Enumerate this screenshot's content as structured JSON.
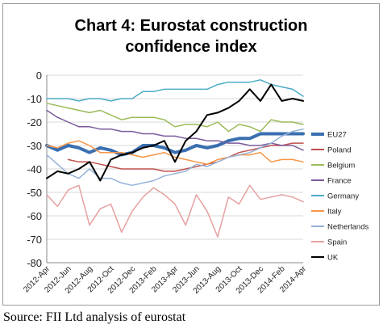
{
  "source_note": "Source: FII Ltd analysis of eurostat",
  "chart_data": {
    "type": "line",
    "title_lines": [
      "Chart 4: Eurostat construction",
      "confidence index"
    ],
    "ylim": [
      -80,
      0
    ],
    "yticks": [
      0,
      -10,
      -20,
      -30,
      -40,
      -50,
      -60,
      -70,
      -80
    ],
    "x_tick_labels": [
      "2012-Apr",
      "2012-Jun",
      "2012-Aug",
      "2012-Oct",
      "2012-Dec",
      "2013-Feb",
      "2013-Apr",
      "2013-Jun",
      "2013-Aug",
      "2013-Oct",
      "2013-Dec",
      "2014-Feb",
      "2014-Apr"
    ],
    "x": [
      "2012-Apr",
      "2012-May",
      "2012-Jun",
      "2012-Jul",
      "2012-Aug",
      "2012-Sep",
      "2012-Oct",
      "2012-Nov",
      "2012-Dec",
      "2013-Jan",
      "2013-Feb",
      "2013-Mar",
      "2013-Apr",
      "2013-May",
      "2013-Jun",
      "2013-Jul",
      "2013-Aug",
      "2013-Sep",
      "2013-Oct",
      "2013-Nov",
      "2013-Dec",
      "2014-Jan",
      "2014-Feb",
      "2014-Mar",
      "2014-Apr"
    ],
    "legend_position": "right",
    "series": [
      {
        "name": "EU27",
        "color": "#3a6fb0",
        "width": 4,
        "values": [
          -30,
          -32,
          -30,
          -31,
          -33,
          -31,
          -32,
          -34,
          -33,
          -30,
          -30,
          -31,
          -33,
          -32,
          -30,
          -31,
          -30,
          -28,
          -27,
          -27,
          -25,
          -25,
          -25,
          -25,
          -25
        ]
      },
      {
        "name": "Poland",
        "color": "#c0504d",
        "width": 1.5,
        "values": [
          null,
          null,
          -36,
          -37,
          -37,
          -38,
          -39,
          -40,
          -40,
          -40,
          -40,
          -41,
          -41,
          -40,
          -39,
          -38,
          -37,
          -35,
          -33,
          -32,
          -31,
          -30,
          -30,
          -29,
          -29
        ]
      },
      {
        "name": "Belgium",
        "color": "#9bbb59",
        "width": 1.5,
        "values": [
          -12,
          -13,
          -14,
          -15,
          -16,
          -15,
          -17,
          -19,
          -18,
          -18,
          -18,
          -19,
          -22,
          -21,
          -21,
          -22,
          -20,
          -24,
          -21,
          -22,
          -24,
          -19,
          -20,
          -20,
          -21
        ]
      },
      {
        "name": "France",
        "color": "#7b5a9c",
        "width": 1.5,
        "values": [
          -15,
          -18,
          -20,
          -22,
          -22,
          -23,
          -23,
          -24,
          -24,
          -25,
          -25,
          -26,
          -26,
          -27,
          -27,
          -28,
          -28,
          -29,
          -29,
          -30,
          -30,
          -29,
          -30,
          -30,
          -32
        ]
      },
      {
        "name": "Germany",
        "color": "#4bacc6",
        "width": 1.5,
        "values": [
          -10,
          -10,
          -10,
          -11,
          -10,
          -10,
          -11,
          -10,
          -10,
          -7,
          -7,
          -6,
          -6,
          -6,
          -6,
          -6,
          -4,
          -3,
          -3,
          -3,
          -2,
          -4,
          -5,
          -6,
          -9
        ]
      },
      {
        "name": "Italy",
        "color": "#f79646",
        "width": 1.5,
        "values": [
          -30,
          -31,
          -29,
          -28,
          -30,
          -33,
          -33,
          -33,
          -34,
          -35,
          -34,
          -33,
          -35,
          -36,
          -37,
          -38,
          -36,
          -35,
          -34,
          -34,
          -33,
          -37,
          -36,
          -36,
          -37
        ]
      },
      {
        "name": "Netherlands",
        "color": "#95b3d7",
        "width": 1.5,
        "values": [
          -34,
          -38,
          -42,
          -44,
          -40,
          -44,
          -44,
          -46,
          -47,
          -46,
          -45,
          -43,
          -42,
          -41,
          -38,
          -39,
          -37,
          -35,
          -34,
          -33,
          -31,
          -29,
          -26,
          -24,
          -23
        ]
      },
      {
        "name": "Spain",
        "color": "#e6a0a0",
        "width": 1.5,
        "values": [
          -51,
          -56,
          -49,
          -47,
          -64,
          -57,
          -55,
          -67,
          -58,
          -52,
          -48,
          -51,
          -55,
          -64,
          -51,
          -58,
          -69,
          -52,
          -55,
          -47,
          -53,
          -52,
          -51,
          -52,
          -54
        ]
      },
      {
        "name": "UK",
        "color": "#000000",
        "width": 2,
        "values": [
          -44,
          -41,
          -42,
          -40,
          -37,
          -45,
          -36,
          -34,
          -33,
          -31,
          -30,
          -28,
          -37,
          -28,
          -24,
          -17,
          -16,
          -14,
          -11,
          -6,
          -11,
          -4,
          -11,
          -10,
          -11
        ]
      }
    ]
  }
}
